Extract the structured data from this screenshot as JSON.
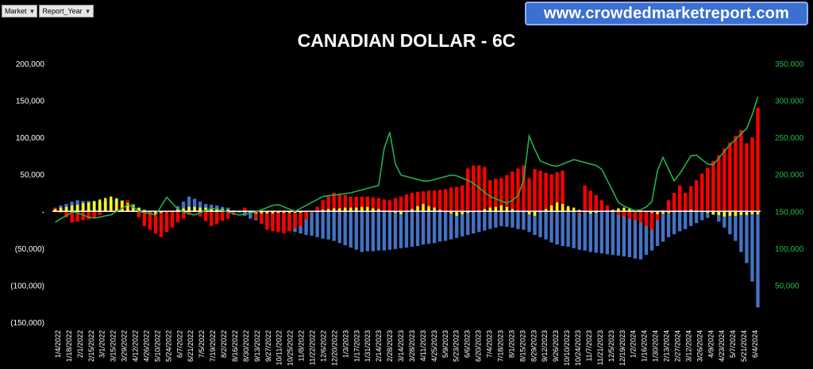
{
  "filters": [
    {
      "label": "Market"
    },
    {
      "label": "Report_Year"
    }
  ],
  "banner": {
    "text": "www.crowdedmarketreport.com"
  },
  "chart_data": {
    "type": "bar",
    "title": "CANADIAN DOLLAR - 6C",
    "ylim": [
      -150000,
      200000
    ],
    "y2lim": [
      0,
      350000
    ],
    "y_ticks": [
      "200,000",
      "150,000",
      "100,000",
      "50,000",
      "-",
      "(50,000)",
      "(100,000)",
      "(150,000)"
    ],
    "y2_ticks": [
      "350,000",
      "300,000",
      "250,000",
      "200,000",
      "150,000",
      "100,000",
      "50,000"
    ],
    "x_tick_labels": [
      "1/4/2022",
      "1/18/2022",
      "2/1/2022",
      "2/15/2022",
      "3/1/2022",
      "3/15/2022",
      "3/29/2022",
      "4/12/2022",
      "4/26/2022",
      "5/10/2022",
      "5/24/2022",
      "6/7/2022",
      "6/21/2022",
      "7/5/2022",
      "7/19/2022",
      "8/2/2022",
      "8/16/2022",
      "8/30/2022",
      "9/13/2022",
      "9/27/2022",
      "10/11/2022",
      "10/25/2022",
      "11/8/2022",
      "11/22/2022",
      "12/6/2022",
      "12/20/2022",
      "1/3/2023",
      "1/17/2023",
      "1/31/2023",
      "2/14/2023",
      "2/28/2023",
      "3/14/2023",
      "3/28/2023",
      "4/11/2023",
      "4/25/2023",
      "5/9/2023",
      "5/23/2023",
      "6/6/2023",
      "6/20/2023",
      "7/4/2023",
      "7/18/2023",
      "8/1/2023",
      "8/15/2023",
      "8/29/2023",
      "9/12/2023",
      "9/26/2023",
      "10/10/2023",
      "10/24/2023",
      "11/7/2023",
      "11/21/2023",
      "12/5/2023",
      "12/19/2023",
      "1/2/2024",
      "1/16/2024",
      "1/30/2024",
      "2/13/2024",
      "2/27/2024",
      "3/12/2024",
      "3/26/2024",
      "4/9/2024",
      "4/23/2024",
      "5/7/2024",
      "5/21/2024",
      "6/4/2024"
    ],
    "series": [],
    "colors": {
      "red": "#ff0000",
      "blue": "#4472c4",
      "yellow": "#ffff00",
      "green": "#22b14c"
    }
  }
}
